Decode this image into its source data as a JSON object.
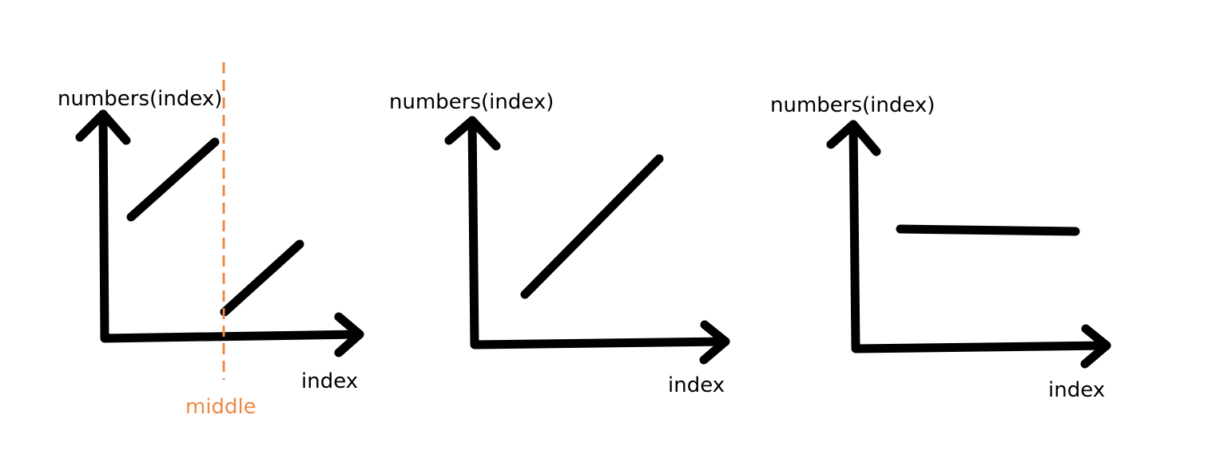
{
  "colors": {
    "ink": "#000000",
    "marker": "#ed8a47",
    "background": "#ffffff"
  },
  "panels": [
    {
      "id": "sorted-rotated",
      "ylabel": "numbers(index)",
      "xlabel": "index",
      "segments": [
        "upper-left-ascending",
        "lower-right-ascending"
      ],
      "marker": {
        "label": "middle"
      }
    },
    {
      "id": "fully-sorted",
      "ylabel": "numbers(index)",
      "xlabel": "index",
      "segments": [
        "ascending"
      ]
    },
    {
      "id": "constant",
      "ylabel": "numbers(index)",
      "xlabel": "index",
      "segments": [
        "flat"
      ]
    }
  ]
}
